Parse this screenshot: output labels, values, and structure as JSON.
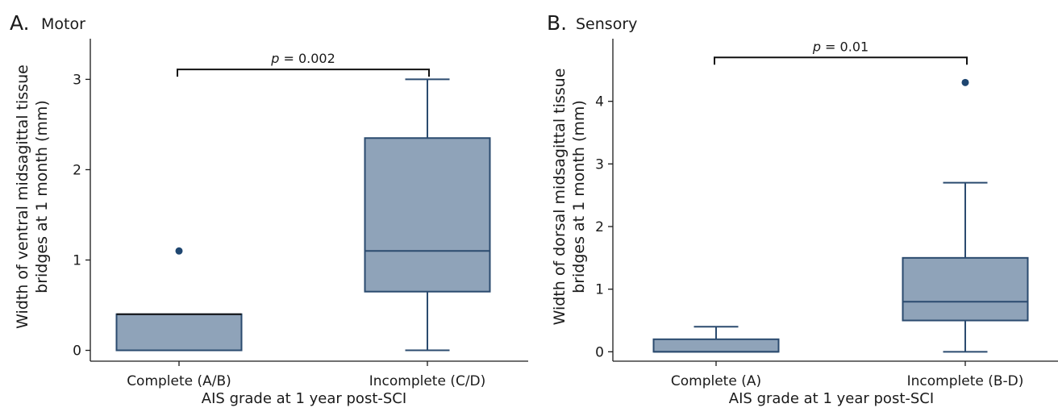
{
  "chart_data": [
    {
      "type": "box",
      "panel_letter": "A.",
      "panel_name": "Motor",
      "ylabel_line1": "Width of ventral midsagittal tissue",
      "ylabel_line2": "bridges at 1 month (mm)",
      "xlabel": "AIS grade at 1 year post-SCI",
      "ylim": [
        -0.12,
        3.45
      ],
      "yticks": [
        0,
        1,
        2,
        3
      ],
      "grid": false,
      "categories": [
        "Complete (A/B)",
        "Incomplete (C/D)"
      ],
      "boxes": [
        {
          "min": 0,
          "q1": 0,
          "median": 0.4,
          "q3": 0.4,
          "max": 0.4,
          "outliers": [
            1.1
          ]
        },
        {
          "min": 0,
          "q1": 0.65,
          "median": 1.1,
          "q3": 2.35,
          "max": 3.0,
          "outliers": []
        }
      ],
      "significance": {
        "p_label": "p",
        "p_value": " = 0.002",
        "bracket_y": 3.11
      }
    },
    {
      "type": "box",
      "panel_letter": "B.",
      "panel_name": "Sensory",
      "ylabel_line1": "Width of dorsal midsagittal tissue",
      "ylabel_line2": "bridges at 1 month (mm)",
      "xlabel": "AIS grade at 1 year post-SCI",
      "ylim": [
        -0.15,
        5.0
      ],
      "yticks": [
        0,
        1,
        2,
        3,
        4
      ],
      "grid": false,
      "categories": [
        "Complete (A)",
        "Incomplete (B-D)"
      ],
      "boxes": [
        {
          "min": 0,
          "q1": 0,
          "median": 0,
          "q3": 0.2,
          "max": 0.4,
          "outliers": []
        },
        {
          "min": 0,
          "q1": 0.5,
          "median": 0.8,
          "q3": 1.5,
          "max": 2.7,
          "outliers": [
            4.3
          ]
        }
      ],
      "significance": {
        "p_label": "p",
        "p_value": " = 0.01",
        "bracket_y": 4.7
      }
    }
  ],
  "colors": {
    "box_fill": "#8fa3b9",
    "box_stroke": "#2b4b6f",
    "outlier": "#1f4670",
    "axis": "#1a1a1a"
  }
}
